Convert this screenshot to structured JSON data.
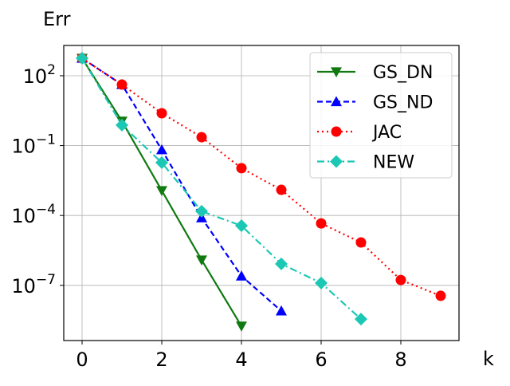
{
  "chart_data": {
    "type": "line",
    "title": "",
    "xlabel": "k",
    "ylabel": "Err",
    "xscale": "linear",
    "yscale": "log",
    "xlim": [
      -0.46,
      9.46
    ],
    "ylim_log10": [
      -9.37,
      3.3
    ],
    "grid": true,
    "legend_placement": "top-right",
    "xticks": [
      0,
      2,
      4,
      6,
      8
    ],
    "xtick_labels": [
      "0",
      "2",
      "4",
      "6",
      "8"
    ],
    "yticks_log10": [
      2,
      -1,
      -4,
      -7
    ],
    "ytick_bases": [
      "10",
      "10",
      "10",
      "10"
    ],
    "ytick_exponents": [
      "2",
      "−1",
      "−4",
      "−7"
    ],
    "series": [
      {
        "name": "GS_DN",
        "color": "#107a10",
        "dash": "solid",
        "marker": "triangle-down",
        "x": [
          0,
          1,
          2,
          3,
          4
        ],
        "log10_y": [
          2.75,
          0.05,
          -2.93,
          -5.91,
          -8.75
        ]
      },
      {
        "name": "GS_ND",
        "color": "#0000ff",
        "dash": "dashed",
        "marker": "triangle-up",
        "x": [
          0,
          1,
          2,
          3,
          4,
          5
        ],
        "log10_y": [
          2.75,
          1.62,
          -1.18,
          -4.1,
          -6.6,
          -8.1
        ]
      },
      {
        "name": "JAC",
        "color": "#ff0000",
        "dash": "dotted",
        "marker": "circle",
        "x": [
          0,
          1,
          2,
          3,
          4,
          5,
          6,
          7,
          8,
          9
        ],
        "log10_y": [
          2.75,
          1.62,
          0.39,
          -0.64,
          -1.97,
          -2.9,
          -4.34,
          -5.16,
          -6.77,
          -7.45
        ]
      },
      {
        "name": "NEW",
        "color": "#1cc8b4",
        "dash": "dashdot",
        "marker": "diamond",
        "x": [
          0,
          1,
          2,
          3,
          4,
          5,
          6,
          7
        ],
        "log10_y": [
          2.75,
          -0.12,
          -1.73,
          -3.82,
          -4.44,
          -6.08,
          -6.9,
          -8.45
        ]
      }
    ]
  }
}
